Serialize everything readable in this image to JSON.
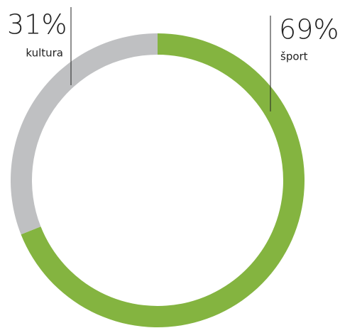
{
  "chart_data": {
    "type": "donut",
    "categories": [
      "šport",
      "kultura"
    ],
    "values": [
      69,
      31
    ],
    "value_labels": [
      "69%",
      "31%"
    ],
    "colors": [
      "#84b440",
      "#bfc0c2"
    ]
  }
}
